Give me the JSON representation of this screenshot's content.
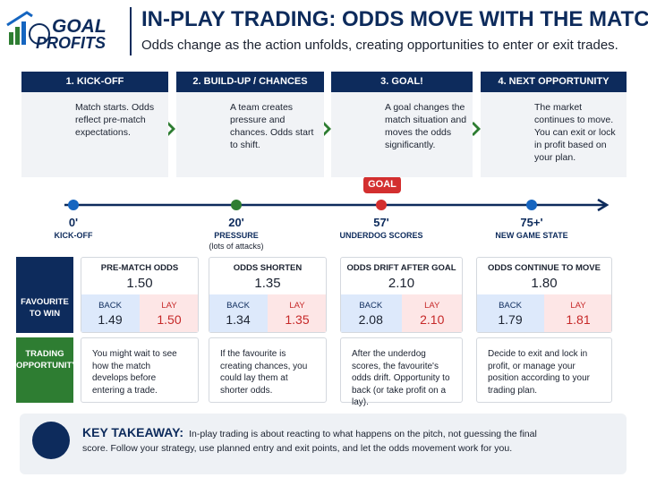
{
  "header": {
    "logo_top": "GOAL",
    "logo_bottom": "PROFITS",
    "title": "IN-PLAY TRADING: ODDS MOVE WITH THE MATCH",
    "subtitle": "Odds change as the action unfolds, creating opportunities to enter or exit trades."
  },
  "stages": [
    {
      "heading": "1. KICK-OFF",
      "text": "Match starts. Odds reflect pre-match expectations."
    },
    {
      "heading": "2. BUILD-UP / CHANCES",
      "text": "A team creates pressure and chances. Odds start to shift."
    },
    {
      "heading": "3. GOAL!",
      "text": "A goal changes the match situation and moves the odds significantly."
    },
    {
      "heading": "4. NEXT OPPORTUNITY",
      "text": "The market continues to move. You can exit or lock in profit based on your plan."
    }
  ],
  "timeline": {
    "badge": "GOAL",
    "points": [
      {
        "time": "0'",
        "label": "KICK-OFF"
      },
      {
        "time": "20'",
        "label": "PRESSURE",
        "note": "(lots of attacks)"
      },
      {
        "time": "57'",
        "label": "UNDERDOG SCORES"
      },
      {
        "time": "75+'",
        "label": "NEW GAME STATE"
      }
    ]
  },
  "rows": {
    "favourite": "FAVOURITE TO WIN",
    "opportunity": "TRADING OPPORTUNITY"
  },
  "odds": [
    {
      "title": "PRE-MATCH ODDS",
      "odds": "1.50",
      "back_label": "BACK",
      "back": "1.49",
      "lay_label": "LAY",
      "lay": "1.50"
    },
    {
      "title": "ODDS SHORTEN",
      "odds": "1.35",
      "back_label": "BACK",
      "back": "1.34",
      "lay_label": "LAY",
      "lay": "1.35"
    },
    {
      "title": "ODDS DRIFT AFTER GOAL",
      "odds": "2.10",
      "back_label": "BACK",
      "back": "2.08",
      "lay_label": "LAY",
      "lay": "2.10"
    },
    {
      "title": "ODDS CONTINUE TO MOVE",
      "odds": "1.80",
      "back_label": "BACK",
      "back": "1.79",
      "lay_label": "LAY",
      "lay": "1.81"
    }
  ],
  "opportunities": [
    "You might wait to see how the match develops before entering a trade.",
    "If the favourite is creating chances, you could lay them at shorter odds.",
    "After the underdog scores, the favourite's odds drift. Opportunity to back (or take profit on a lay).",
    "Decide to exit and lock in profit, or manage your position according to your trading plan."
  ],
  "takeaway": {
    "heading": "KEY TAKEAWAY:",
    "text": "In-play trading is about reacting to what happens on the pitch, not guessing the final score. Follow your strategy, use planned entry and exit points, and let the odds movement work for you."
  }
}
